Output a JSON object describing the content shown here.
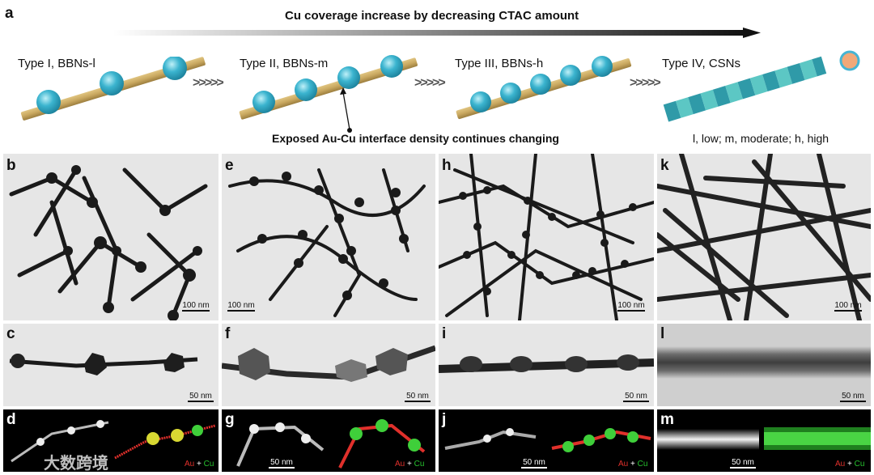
{
  "panel_a": {
    "label": "a",
    "gradient_title": "Cu coverage increase by decreasing CTAC amount",
    "types": [
      {
        "label": "Type I, BBNs-l"
      },
      {
        "label": "Type II, BBNs-m"
      },
      {
        "label": "Type III, BBNs-h"
      },
      {
        "label": "Type IV, CSNs"
      }
    ],
    "arrow_glyph": ">>>>>",
    "interface_note": "Exposed Au-Cu interface density continues changing",
    "abbreviations": "l, low; m, moderate; h, high"
  },
  "row1": {
    "labels": [
      "b",
      "e",
      "h",
      "k"
    ],
    "scalebar": "100 nm"
  },
  "row2": {
    "labels": [
      "c",
      "f",
      "i",
      "l"
    ],
    "scalebar": "50 nm"
  },
  "row3": {
    "labels": [
      "d",
      "g",
      "j",
      "m"
    ],
    "scalebar": "50 nm",
    "legend_au": "Au",
    "legend_plus": " + ",
    "legend_cu": "Cu"
  },
  "watermark": "大数跨境",
  "colors": {
    "rod": "#c9a860",
    "bead": "#3bb4cf",
    "shell_dark": "#2f9aa8",
    "shell_light": "#5cc7c4",
    "au_map": "#e0302b",
    "cu_map": "#26c22e"
  }
}
